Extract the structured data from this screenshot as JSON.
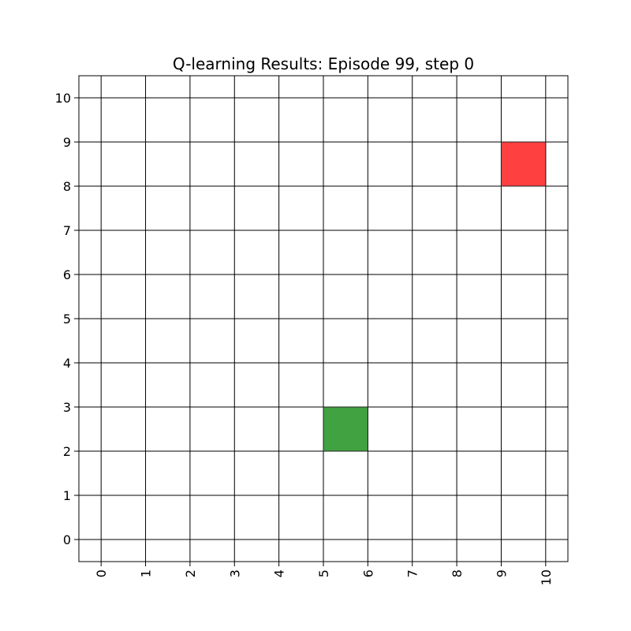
{
  "chart_data": {
    "type": "heatmap",
    "title": "Q-learning Results: Episode 99, step 0",
    "xlabel": "",
    "ylabel": "",
    "xlim": [
      -0.5,
      10.5
    ],
    "ylim": [
      -0.5,
      10.5
    ],
    "x_ticks": [
      0,
      1,
      2,
      3,
      4,
      5,
      6,
      7,
      8,
      9,
      10
    ],
    "y_ticks": [
      0,
      1,
      2,
      3,
      4,
      5,
      6,
      7,
      8,
      9,
      10
    ],
    "x_tick_rotation": "vertical",
    "grid": true,
    "cells": [
      {
        "x": [
          9,
          10
        ],
        "y": [
          8,
          9
        ],
        "color": "#ff4040"
      },
      {
        "x": [
          5,
          6
        ],
        "y": [
          2,
          3
        ],
        "color": "#41a241"
      }
    ]
  }
}
